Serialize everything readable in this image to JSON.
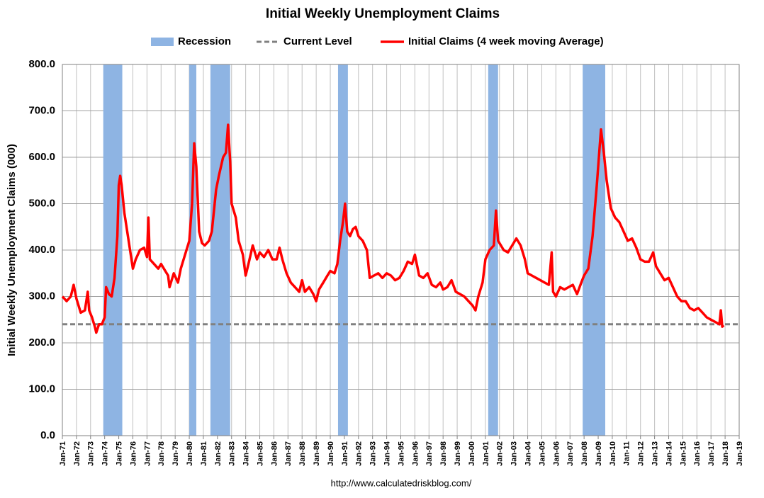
{
  "chart_data": {
    "type": "line",
    "title": "Initial Weekly Unemployment Claims",
    "y_label": "Initial Weekly Unemployment Claims (000)",
    "source": "http://www.calculatedriskblog.com/",
    "grid": true,
    "legend": "top",
    "ylim": [
      0,
      800
    ],
    "yticks": [
      {
        "value": 0,
        "label": "0.0"
      },
      {
        "value": 100,
        "label": "100.0"
      },
      {
        "value": 200,
        "label": "200.0"
      },
      {
        "value": 300,
        "label": "300.0"
      },
      {
        "value": 400,
        "label": "400.0"
      },
      {
        "value": 500,
        "label": "500.0"
      },
      {
        "value": 600,
        "label": "600.0"
      },
      {
        "value": 700,
        "label": "700.0"
      },
      {
        "value": 800,
        "label": "800.0"
      }
    ],
    "xlim": [
      1971,
      2019
    ],
    "xticks": [
      {
        "value": 1971,
        "label": "Jan-71"
      },
      {
        "value": 1972,
        "label": "Jan-72"
      },
      {
        "value": 1973,
        "label": "Jan-73"
      },
      {
        "value": 1974,
        "label": "Jan-74"
      },
      {
        "value": 1975,
        "label": "Jan-75"
      },
      {
        "value": 1976,
        "label": "Jan-76"
      },
      {
        "value": 1977,
        "label": "Jan-77"
      },
      {
        "value": 1978,
        "label": "Jan-78"
      },
      {
        "value": 1979,
        "label": "Jan-79"
      },
      {
        "value": 1980,
        "label": "Jan-80"
      },
      {
        "value": 1981,
        "label": "Jan-81"
      },
      {
        "value": 1982,
        "label": "Jan-82"
      },
      {
        "value": 1983,
        "label": "Jan-83"
      },
      {
        "value": 1984,
        "label": "Jan-84"
      },
      {
        "value": 1985,
        "label": "Jan-85"
      },
      {
        "value": 1986,
        "label": "Jan-86"
      },
      {
        "value": 1987,
        "label": "Jan-87"
      },
      {
        "value": 1988,
        "label": "Jan-88"
      },
      {
        "value": 1989,
        "label": "Jan-89"
      },
      {
        "value": 1990,
        "label": "Jan-90"
      },
      {
        "value": 1991,
        "label": "Jan-91"
      },
      {
        "value": 1992,
        "label": "Jan-92"
      },
      {
        "value": 1993,
        "label": "Jan-93"
      },
      {
        "value": 1994,
        "label": "Jan-94"
      },
      {
        "value": 1995,
        "label": "Jan-95"
      },
      {
        "value": 1996,
        "label": "Jan-96"
      },
      {
        "value": 1997,
        "label": "Jan-97"
      },
      {
        "value": 1998,
        "label": "Jan-98"
      },
      {
        "value": 1999,
        "label": "Jan-99"
      },
      {
        "value": 2000,
        "label": "Jan-00"
      },
      {
        "value": 2001,
        "label": "Jan-01"
      },
      {
        "value": 2002,
        "label": "Jan-02"
      },
      {
        "value": 2003,
        "label": "Jan-03"
      },
      {
        "value": 2004,
        "label": "Jan-04"
      },
      {
        "value": 2005,
        "label": "Jan-05"
      },
      {
        "value": 2006,
        "label": "Jan-06"
      },
      {
        "value": 2007,
        "label": "Jan-07"
      },
      {
        "value": 2008,
        "label": "Jan-08"
      },
      {
        "value": 2009,
        "label": "Jan-09"
      },
      {
        "value": 2010,
        "label": "Jan-10"
      },
      {
        "value": 2011,
        "label": "Jan-11"
      },
      {
        "value": 2012,
        "label": "Jan-12"
      },
      {
        "value": 2013,
        "label": "Jan-13"
      },
      {
        "value": 2014,
        "label": "Jan-14"
      },
      {
        "value": 2015,
        "label": "Jan-15"
      },
      {
        "value": 2016,
        "label": "Jan-16"
      },
      {
        "value": 2017,
        "label": "Jan-17"
      },
      {
        "value": 2018,
        "label": "Jan-18"
      },
      {
        "value": 2019,
        "label": "Jan-19"
      }
    ],
    "series": [
      {
        "name": "Recession",
        "color": "#8eb4e3",
        "ranges": [
          [
            1973.9,
            1975.25
          ],
          [
            1980.0,
            1980.5
          ],
          [
            1981.5,
            1982.9
          ],
          [
            1990.55,
            1991.25
          ],
          [
            2001.2,
            2001.9
          ],
          [
            2007.9,
            2009.5
          ]
        ]
      },
      {
        "name": "Current Level",
        "color": "#808080",
        "value": 240
      },
      {
        "name": "Initial Claims (4 week moving Average)",
        "color": "#ff0000",
        "x": [
          1971.0,
          1971.3,
          1971.6,
          1971.8,
          1972.0,
          1972.3,
          1972.6,
          1972.8,
          1972.9,
          1973.1,
          1973.3,
          1973.4,
          1973.6,
          1973.8,
          1974.0,
          1974.1,
          1974.3,
          1974.5,
          1974.7,
          1974.9,
          1975.0,
          1975.1,
          1975.2,
          1975.4,
          1975.6,
          1975.8,
          1976.0,
          1976.2,
          1976.5,
          1976.8,
          1977.0,
          1977.1,
          1977.2,
          1977.5,
          1977.8,
          1978.0,
          1978.3,
          1978.5,
          1978.6,
          1978.9,
          1979.2,
          1979.4,
          1979.6,
          1979.8,
          1980.0,
          1980.2,
          1980.35,
          1980.5,
          1980.7,
          1980.9,
          1981.1,
          1981.4,
          1981.6,
          1981.9,
          1982.1,
          1982.4,
          1982.6,
          1982.75,
          1982.9,
          1983.0,
          1983.3,
          1983.5,
          1983.8,
          1984.0,
          1984.2,
          1984.5,
          1984.8,
          1985.0,
          1985.3,
          1985.6,
          1985.9,
          1986.2,
          1986.4,
          1986.6,
          1986.9,
          1987.2,
          1987.5,
          1987.8,
          1988.0,
          1988.2,
          1988.5,
          1988.8,
          1989.0,
          1989.2,
          1989.5,
          1989.8,
          1990.0,
          1990.3,
          1990.5,
          1990.7,
          1990.9,
          1991.05,
          1991.2,
          1991.4,
          1991.6,
          1991.8,
          1992.0,
          1992.3,
          1992.6,
          1992.8,
          1993.1,
          1993.4,
          1993.7,
          1994.0,
          1994.3,
          1994.6,
          1994.9,
          1995.2,
          1995.5,
          1995.8,
          1996.0,
          1996.3,
          1996.6,
          1996.9,
          1997.2,
          1997.5,
          1997.8,
          1998.0,
          1998.3,
          1998.6,
          1998.9,
          1999.2,
          1999.5,
          1999.8,
          2000.1,
          2000.3,
          2000.5,
          2000.8,
          2001.0,
          2001.3,
          2001.6,
          2001.75,
          2001.9,
          2002.1,
          2002.3,
          2002.6,
          2002.9,
          2003.2,
          2003.5,
          2003.8,
          2004.0,
          2004.3,
          2004.6,
          2004.9,
          2005.2,
          2005.5,
          2005.7,
          2005.8,
          2006.0,
          2006.3,
          2006.6,
          2006.9,
          2007.2,
          2007.5,
          2007.8,
          2008.0,
          2008.3,
          2008.6,
          2008.9,
          2009.1,
          2009.2,
          2009.4,
          2009.6,
          2009.9,
          2010.2,
          2010.5,
          2010.8,
          2011.1,
          2011.4,
          2011.7,
          2012.0,
          2012.3,
          2012.6,
          2012.9,
          2013.1,
          2013.4,
          2013.7,
          2014.0,
          2014.3,
          2014.6,
          2014.9,
          2015.2,
          2015.5,
          2015.8,
          2016.1,
          2016.4,
          2016.7,
          2017.0,
          2017.3,
          2017.6,
          2017.7,
          2017.8,
          2017.9
        ],
        "values": [
          300,
          290,
          300,
          325,
          295,
          265,
          270,
          310,
          270,
          255,
          235,
          222,
          240,
          240,
          255,
          320,
          305,
          300,
          340,
          430,
          540,
          560,
          540,
          480,
          440,
          400,
          360,
          380,
          400,
          405,
          385,
          470,
          380,
          370,
          360,
          370,
          355,
          345,
          320,
          350,
          330,
          360,
          380,
          400,
          420,
          500,
          630,
          580,
          440,
          415,
          410,
          420,
          440,
          530,
          560,
          600,
          610,
          670,
          590,
          500,
          470,
          420,
          390,
          345,
          370,
          410,
          380,
          395,
          385,
          400,
          380,
          380,
          405,
          380,
          350,
          330,
          320,
          310,
          335,
          310,
          320,
          305,
          290,
          315,
          330,
          345,
          355,
          350,
          370,
          420,
          460,
          500,
          440,
          430,
          445,
          450,
          430,
          420,
          400,
          340,
          345,
          350,
          340,
          350,
          345,
          335,
          340,
          355,
          375,
          370,
          390,
          345,
          340,
          350,
          325,
          320,
          330,
          315,
          320,
          335,
          310,
          305,
          300,
          290,
          280,
          270,
          300,
          330,
          380,
          400,
          410,
          485,
          420,
          410,
          400,
          395,
          410,
          425,
          410,
          380,
          350,
          345,
          340,
          335,
          330,
          325,
          395,
          310,
          300,
          320,
          315,
          320,
          325,
          305,
          330,
          345,
          360,
          430,
          540,
          620,
          660,
          610,
          550,
          490,
          470,
          460,
          440,
          420,
          425,
          405,
          380,
          375,
          375,
          395,
          365,
          350,
          335,
          340,
          320,
          300,
          290,
          290,
          275,
          270,
          275,
          265,
          255,
          250,
          245,
          240,
          270,
          235,
          238
        ]
      }
    ]
  }
}
